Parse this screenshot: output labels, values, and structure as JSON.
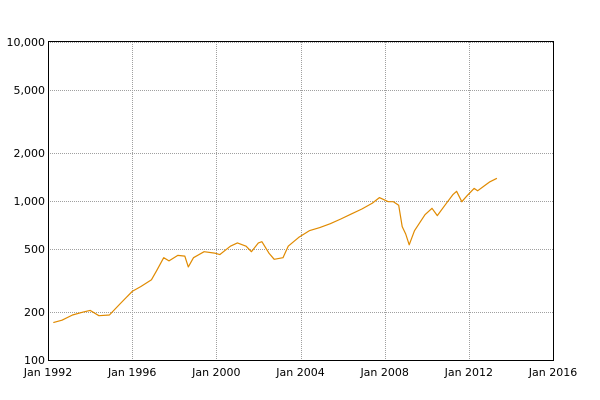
{
  "chart_data": {
    "type": "line",
    "title": "",
    "xlabel": "",
    "ylabel": "",
    "yscale": "log",
    "ylim": [
      100,
      10000
    ],
    "xlim": [
      "1992-01",
      "2016-01"
    ],
    "grid": true,
    "legend": "none",
    "line_color": "#e08a00",
    "y_ticks": [
      {
        "value": 100,
        "label": "100"
      },
      {
        "value": 200,
        "label": "200"
      },
      {
        "value": 500,
        "label": "500"
      },
      {
        "value": 1000,
        "label": "1,000"
      },
      {
        "value": 2000,
        "label": "2,000"
      },
      {
        "value": 5000,
        "label": "5,000"
      },
      {
        "value": 10000,
        "label": "10,000"
      }
    ],
    "x_ticks": [
      {
        "value": "1992-01",
        "label": "Jan 1992"
      },
      {
        "value": "1996-01",
        "label": "Jan 1996"
      },
      {
        "value": "2000-01",
        "label": "Jan 2000"
      },
      {
        "value": "2004-01",
        "label": "Jan 2004"
      },
      {
        "value": "2008-01",
        "label": "Jan 2008"
      },
      {
        "value": "2012-01",
        "label": "Jan 2012"
      },
      {
        "value": "2016-01",
        "label": "Jan 2016"
      }
    ],
    "series": [
      {
        "points": [
          [
            "1992-04",
            172
          ],
          [
            "1992-09",
            178
          ],
          [
            "1993-03",
            192
          ],
          [
            "1993-09",
            200
          ],
          [
            "1994-01",
            205
          ],
          [
            "1994-06",
            190
          ],
          [
            "1994-12",
            192
          ],
          [
            "1995-06",
            225
          ],
          [
            "1996-01",
            270
          ],
          [
            "1996-06",
            290
          ],
          [
            "1996-12",
            320
          ],
          [
            "1997-03",
            365
          ],
          [
            "1997-07",
            440
          ],
          [
            "1997-10",
            420
          ],
          [
            "1998-03",
            455
          ],
          [
            "1998-07",
            450
          ],
          [
            "1998-09",
            385
          ],
          [
            "1998-12",
            440
          ],
          [
            "1999-06",
            480
          ],
          [
            "1999-12",
            470
          ],
          [
            "2000-03",
            460
          ],
          [
            "2000-09",
            520
          ],
          [
            "2001-01",
            545
          ],
          [
            "2001-06",
            520
          ],
          [
            "2001-09",
            480
          ],
          [
            "2002-01",
            545
          ],
          [
            "2002-03",
            555
          ],
          [
            "2002-07",
            470
          ],
          [
            "2002-10",
            430
          ],
          [
            "2003-03",
            440
          ],
          [
            "2003-06",
            520
          ],
          [
            "2003-12",
            590
          ],
          [
            "2004-06",
            650
          ],
          [
            "2004-12",
            680
          ],
          [
            "2005-06",
            720
          ],
          [
            "2005-12",
            770
          ],
          [
            "2006-06",
            830
          ],
          [
            "2006-12",
            890
          ],
          [
            "2007-06",
            970
          ],
          [
            "2007-10",
            1050
          ],
          [
            "2008-03",
            990
          ],
          [
            "2008-06",
            990
          ],
          [
            "2008-09",
            940
          ],
          [
            "2008-11",
            690
          ],
          [
            "2009-01",
            620
          ],
          [
            "2009-03",
            530
          ],
          [
            "2009-06",
            650
          ],
          [
            "2009-12",
            820
          ],
          [
            "2010-04",
            900
          ],
          [
            "2010-07",
            810
          ],
          [
            "2010-12",
            960
          ],
          [
            "2011-04",
            1100
          ],
          [
            "2011-06",
            1150
          ],
          [
            "2011-09",
            990
          ],
          [
            "2011-12",
            1080
          ],
          [
            "2012-04",
            1200
          ],
          [
            "2012-06",
            1160
          ],
          [
            "2012-10",
            1250
          ],
          [
            "2013-01",
            1320
          ],
          [
            "2013-05",
            1390
          ]
        ]
      }
    ]
  }
}
